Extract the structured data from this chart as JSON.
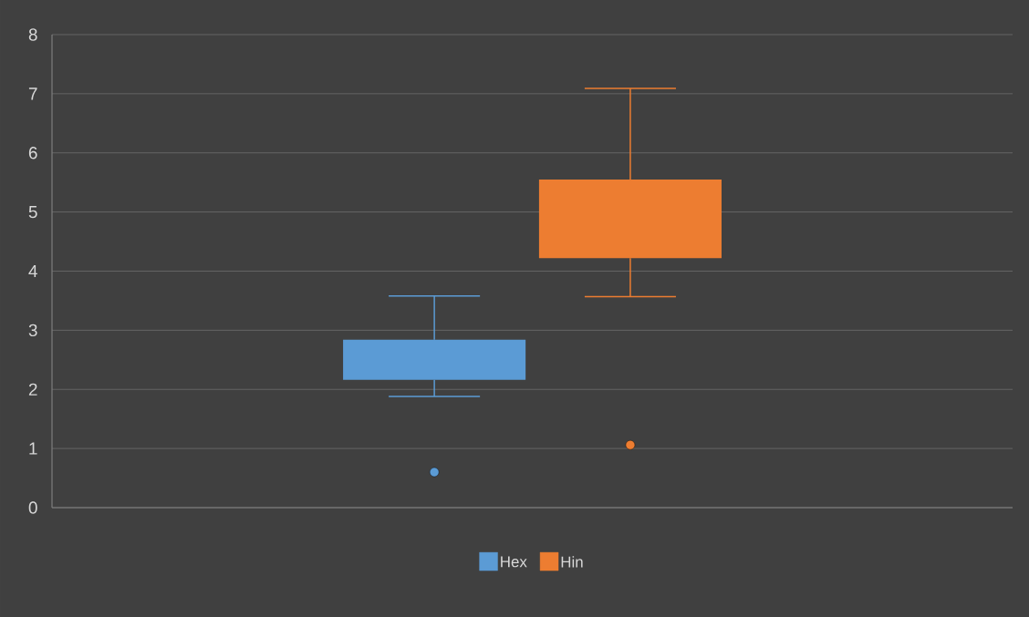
{
  "chart_data": {
    "type": "box",
    "categories": [
      null
    ],
    "series": [
      {
        "name": "Hex",
        "color": "#5b9bd5",
        "boxes": [
          {
            "low": 1.88,
            "q1": 2.16,
            "q3": 2.84,
            "high": 3.58,
            "outliers": [
              0.6
            ]
          }
        ]
      },
      {
        "name": "Hin",
        "color": "#ed7d31",
        "boxes": [
          {
            "low": 3.57,
            "q1": 4.22,
            "q3": 5.55,
            "high": 7.09,
            "outliers": [
              1.06
            ]
          }
        ]
      }
    ],
    "ylim": [
      0,
      8
    ],
    "yticks": [
      0,
      1,
      2,
      3,
      4,
      5,
      6,
      7,
      8
    ],
    "grid": "y",
    "legend": "bottom"
  }
}
